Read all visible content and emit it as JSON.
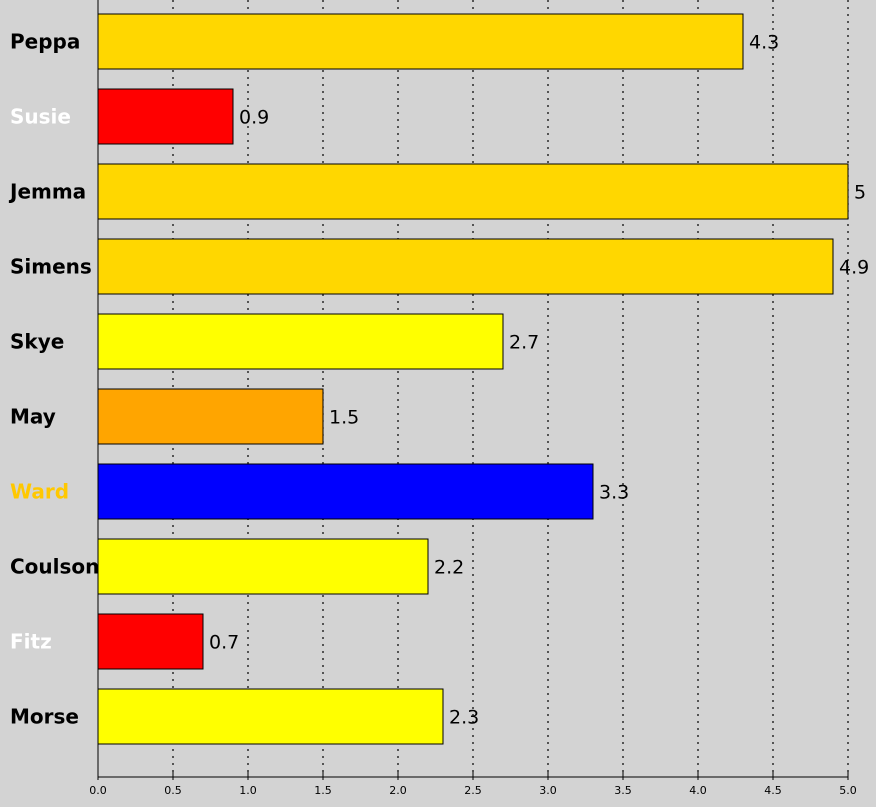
{
  "chart_data": {
    "type": "bar",
    "orientation": "horizontal",
    "categories": [
      "Peppa",
      "Susie",
      "Jemma",
      "Simens",
      "Skye",
      "May",
      "Ward",
      "Coulson",
      "Fitz",
      "Morse"
    ],
    "values": [
      4.3,
      0.9,
      5,
      4.9,
      2.7,
      1.5,
      3.3,
      2.2,
      0.7,
      2.3
    ],
    "value_labels": [
      "4.3",
      "0.9",
      "5",
      "4.9",
      "2.7",
      "1.5",
      "3.3",
      "2.2",
      "0.7",
      "2.3"
    ],
    "bar_colors": [
      "#FFD700",
      "#FF0000",
      "#FFD700",
      "#FFD700",
      "#FFFF00",
      "#FFA500",
      "#0000FF",
      "#FFFF00",
      "#FF0000",
      "#FFFF00"
    ],
    "label_colors": [
      "#000000",
      "#FFFFFF",
      "#000000",
      "#000000",
      "#000000",
      "#000000",
      "#FFC800",
      "#000000",
      "#FFFFFF",
      "#000000"
    ],
    "xlim": [
      0,
      5
    ],
    "x_ticks": [
      "0.0",
      "0.5",
      "1.0",
      "1.5",
      "2.0",
      "2.5",
      "3.0",
      "3.5",
      "4.0",
      "4.5",
      "5.0"
    ],
    "grid": "vertical-dotted",
    "background": "#D3D3D3",
    "title": "",
    "xlabel": "",
    "ylabel": ""
  }
}
